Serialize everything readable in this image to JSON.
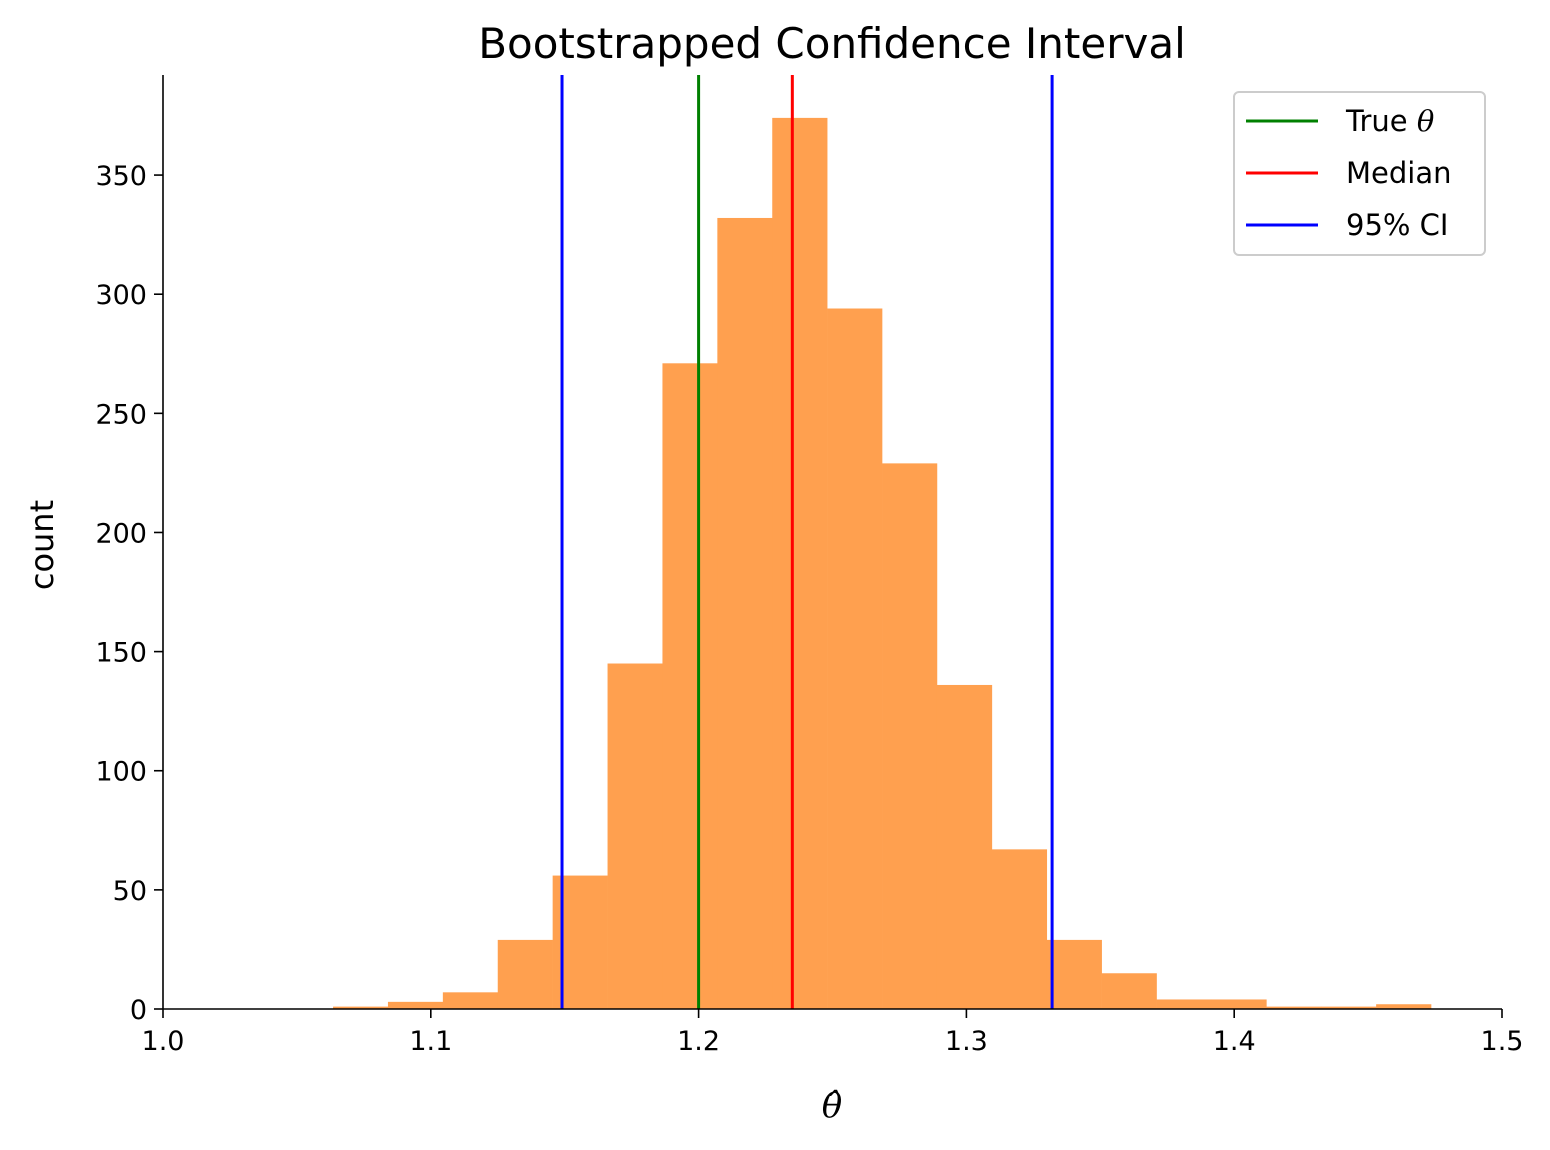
{
  "chart_data": {
    "type": "bar",
    "title": "Bootstrapped Confidence Interval",
    "xlabel": "θ̂",
    "ylabel": "count",
    "xlim": [
      1.0,
      1.5
    ],
    "ylim": [
      0,
      392
    ],
    "xticks": [
      1.0,
      1.1,
      1.2,
      1.3,
      1.4,
      1.5
    ],
    "xtick_labels": [
      "1.0",
      "1.1",
      "1.2",
      "1.3",
      "1.4",
      "1.5"
    ],
    "yticks": [
      0,
      50,
      100,
      150,
      200,
      250,
      300,
      350
    ],
    "ytick_labels": [
      "0",
      "50",
      "100",
      "150",
      "200",
      "250",
      "300",
      "350"
    ],
    "grid": false,
    "histogram": {
      "color": "#ffa04f",
      "bins": [
        {
          "start": 1.0635,
          "end": 1.084,
          "count": 1
        },
        {
          "start": 1.084,
          "end": 1.1045,
          "count": 3
        },
        {
          "start": 1.1045,
          "end": 1.125,
          "count": 7
        },
        {
          "start": 1.125,
          "end": 1.1455,
          "count": 29
        },
        {
          "start": 1.1455,
          "end": 1.166,
          "count": 56
        },
        {
          "start": 1.166,
          "end": 1.1865,
          "count": 145
        },
        {
          "start": 1.1865,
          "end": 1.207,
          "count": 271
        },
        {
          "start": 1.207,
          "end": 1.2275,
          "count": 332
        },
        {
          "start": 1.2275,
          "end": 1.248,
          "count": 374
        },
        {
          "start": 1.248,
          "end": 1.2685,
          "count": 294
        },
        {
          "start": 1.2685,
          "end": 1.289,
          "count": 229
        },
        {
          "start": 1.289,
          "end": 1.3095,
          "count": 136
        },
        {
          "start": 1.3095,
          "end": 1.33,
          "count": 67
        },
        {
          "start": 1.33,
          "end": 1.3505,
          "count": 29
        },
        {
          "start": 1.3505,
          "end": 1.371,
          "count": 15
        },
        {
          "start": 1.371,
          "end": 1.3915,
          "count": 4
        },
        {
          "start": 1.3915,
          "end": 1.412,
          "count": 4
        },
        {
          "start": 1.412,
          "end": 1.4325,
          "count": 1
        },
        {
          "start": 1.4325,
          "end": 1.453,
          "count": 1
        },
        {
          "start": 1.453,
          "end": 1.4735,
          "count": 2
        }
      ]
    },
    "vlines": [
      {
        "name": "True θ",
        "x": 1.2,
        "color": "#008000"
      },
      {
        "name": "Median",
        "x": 1.235,
        "color": "#ff0000"
      },
      {
        "name": "CI lower",
        "x": 1.149,
        "color": "#0000ff"
      },
      {
        "name": "CI upper",
        "x": 1.332,
        "color": "#0000ff"
      }
    ],
    "legend": {
      "placement": "top-right",
      "entries": [
        {
          "prefix": "True ",
          "symbol": "θ",
          "color": "#008000"
        },
        {
          "prefix": "Median",
          "symbol": "",
          "color": "#ff0000"
        },
        {
          "prefix": "95% CI",
          "symbol": "",
          "color": "#0000ff"
        }
      ]
    }
  }
}
